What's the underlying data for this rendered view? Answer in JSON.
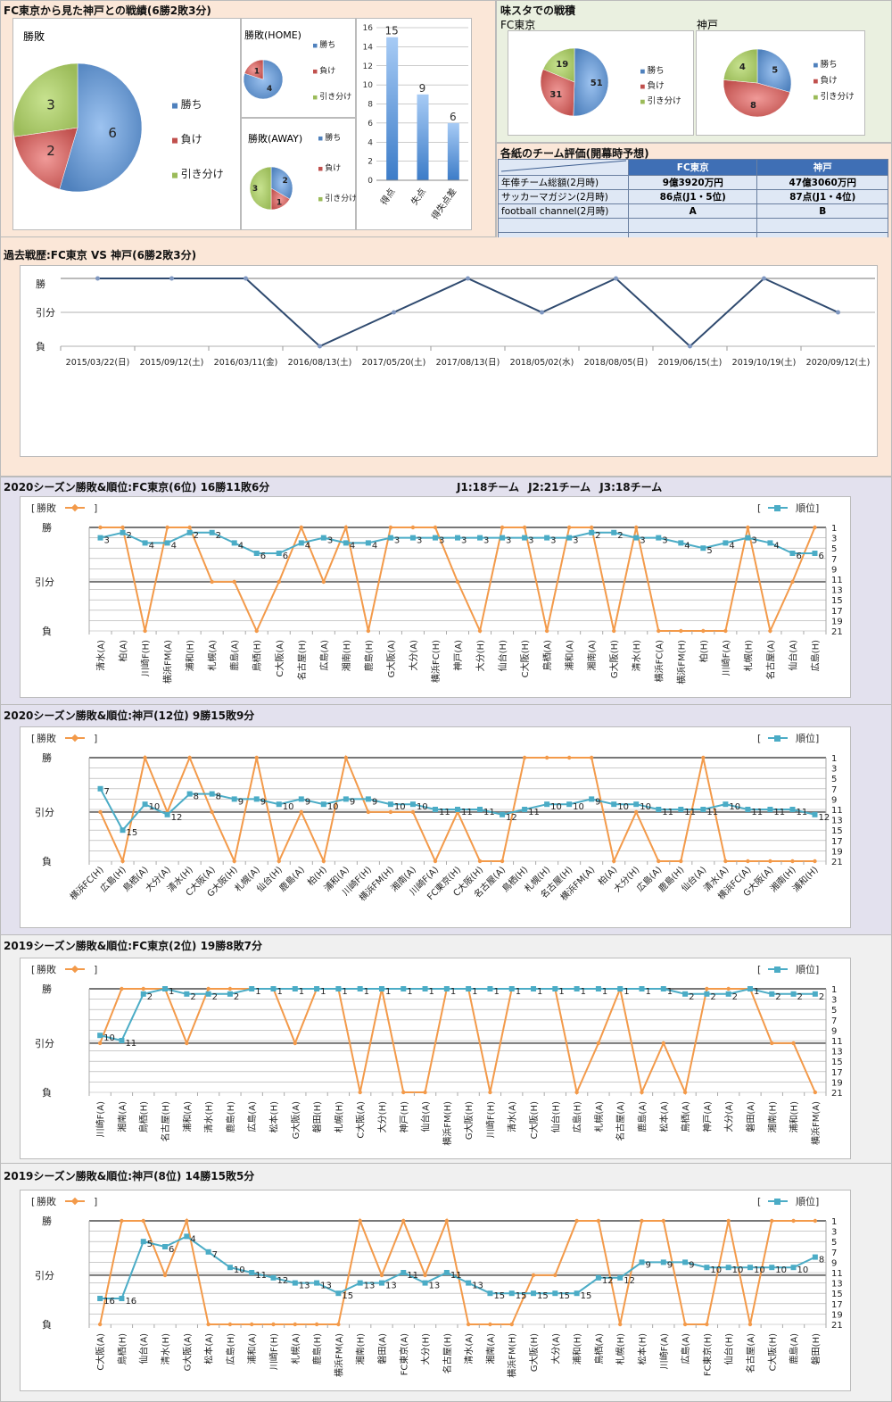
{
  "section_top": {
    "title": "FC東京から見た神戸との戦績(6勝2敗3分)",
    "legend": [
      "勝ち",
      "負け",
      "引き分け"
    ],
    "colors": {
      "win": "#4f81bd",
      "loss": "#c0504d",
      "draw": "#9bbb59",
      "win_light": "#9dc3f0",
      "loss_light": "#f09a98",
      "draw_light": "#c7e28f"
    }
  },
  "stadium": {
    "title": "味スタでの戦積",
    "fc_label": "FC東京",
    "kobe_label": "神戸"
  },
  "eval_table": {
    "title": "各紙のチーム評価(開幕時予想)",
    "headers": [
      "",
      "FC東京",
      "神戸"
    ],
    "rows": [
      [
        "年俸チーム総額(2月時)",
        "9億3920万円",
        "47億3060万円"
      ],
      [
        "サッカーマガジン(2月時)",
        "86点(J1・5位)",
        "87点(J1・4位)"
      ],
      [
        "football channel(2月時)",
        "A",
        "B"
      ],
      [
        "",
        "",
        ""
      ],
      [
        "",
        "",
        ""
      ]
    ]
  },
  "history": {
    "title": "過去戦歴:FC東京 VS 神戸(6勝2敗3分)"
  },
  "season_2020_tokyo": {
    "title": "2020シーズン勝敗&順位:FC東京(6位) 16勝11敗6分",
    "note": "J1:18チーム J2:21チーム J3:18チーム"
  },
  "season_2020_kobe": {
    "title": "2020シーズン勝敗&順位:神戸(12位) 9勝15敗9分"
  },
  "season_2019_tokyo": {
    "title": "2019シーズン勝敗&順位:FC東京(2位) 19勝8敗7分"
  },
  "season_2019_kobe": {
    "title": "2019シーズン勝敗&順位:神戸(8位) 14勝15敗5分"
  },
  "chart_data": [
    {
      "id": "pie_overall",
      "type": "pie",
      "title": "勝敗",
      "labels": [
        "勝ち",
        "負け",
        "引き分け"
      ],
      "values": [
        6,
        2,
        3
      ]
    },
    {
      "id": "pie_home",
      "type": "pie",
      "title": "勝敗(HOME)",
      "labels": [
        "勝ち",
        "負け",
        "引き分け"
      ],
      "values": [
        4,
        1,
        0
      ]
    },
    {
      "id": "pie_away",
      "type": "pie",
      "title": "勝敗(AWAY)",
      "labels": [
        "勝ち",
        "負け",
        "引き分け"
      ],
      "values": [
        2,
        1,
        3
      ]
    },
    {
      "id": "bar_goals",
      "type": "bar",
      "title": "",
      "categories": [
        "得点",
        "失点",
        "得失点差"
      ],
      "values": [
        15,
        9,
        6
      ],
      "ylim": [
        0,
        16
      ],
      "yticks": [
        0,
        2,
        4,
        6,
        8,
        10,
        12,
        14,
        16
      ]
    },
    {
      "id": "pie_ajista_tokyo",
      "type": "pie",
      "title": "FC東京",
      "labels": [
        "勝ち",
        "負け",
        "引き分け"
      ],
      "values": [
        51,
        31,
        19
      ]
    },
    {
      "id": "pie_ajista_kobe",
      "type": "pie",
      "title": "神戸",
      "labels": [
        "勝ち",
        "負け",
        "引き分け"
      ],
      "values": [
        5,
        8,
        4
      ]
    },
    {
      "id": "line_history",
      "type": "line",
      "title": "過去戦歴:FC東京 VS 神戸(6勝2敗3分)",
      "ylevels": [
        "負",
        "引分",
        "勝"
      ],
      "categories": [
        "2015/03/22(日)",
        "2015/09/12(土)",
        "2016/03/11(金)",
        "2016/08/13(土)",
        "2017/05/20(土)",
        "2017/08/13(日)",
        "2018/05/02(水)",
        "2018/08/05(日)",
        "2019/06/15(土)",
        "2019/10/19(土)",
        "2020/09/12(土)"
      ],
      "results": [
        "W",
        "W",
        "W",
        "L",
        "D",
        "W",
        "D",
        "W",
        "L",
        "W",
        "D"
      ]
    },
    {
      "id": "season_2020_tokyo",
      "type": "line",
      "legend": [
        "勝敗",
        "順位"
      ],
      "ylevels": [
        "負",
        "引分",
        "勝"
      ],
      "rank_ticks": [
        1,
        3,
        5,
        7,
        9,
        11,
        13,
        15,
        17,
        19,
        21
      ],
      "categories": [
        "清水(A)",
        "柏(A)",
        "川崎F(H)",
        "横浜FM(A)",
        "浦和(H)",
        "札幌(A)",
        "鹿島(A)",
        "鳥栖(H)",
        "C大阪(A)",
        "名古屋(H)",
        "広島(A)",
        "湘南(H)",
        "鹿島(H)",
        "G大阪(A)",
        "大分(A)",
        "横浜FC(H)",
        "神戸(A)",
        "大分(H)",
        "仙台(H)",
        "C大阪(H)",
        "鳥栖(A)",
        "浦和(A)",
        "湘南(A)",
        "G大阪(H)",
        "清水(H)",
        "横浜FC(A)",
        "横浜FM(H)",
        "柏(H)",
        "川崎F(A)",
        "札幌(H)",
        "名古屋(A)",
        "仙台(A)",
        "広島(H)"
      ],
      "results": [
        "W",
        "W",
        "L",
        "W",
        "W",
        "D",
        "D",
        "L",
        "D",
        "W",
        "D",
        "W",
        "L",
        "W",
        "W",
        "W",
        "D",
        "L",
        "W",
        "W",
        "L",
        "W",
        "W",
        "L",
        "W",
        "L",
        "L",
        "L",
        "L",
        "W",
        "L",
        "D",
        "W"
      ],
      "ranks": [
        3,
        2,
        4,
        4,
        2,
        2,
        4,
        6,
        6,
        4,
        3,
        4,
        4,
        3,
        3,
        3,
        3,
        3,
        3,
        3,
        3,
        3,
        2,
        2,
        3,
        3,
        4,
        5,
        4,
        3,
        4,
        6,
        6
      ]
    },
    {
      "id": "season_2020_kobe",
      "type": "line",
      "legend": [
        "勝敗",
        "順位"
      ],
      "ylevels": [
        "負",
        "引分",
        "勝"
      ],
      "rank_ticks": [
        1,
        3,
        5,
        7,
        9,
        11,
        13,
        15,
        17,
        19,
        21
      ],
      "categories": [
        "横浜FC(H)",
        "広島(H)",
        "鳥栖(A)",
        "大分(A)",
        "清水(H)",
        "C大阪(A)",
        "G大阪(H)",
        "札幌(A)",
        "仙台(H)",
        "鹿島(A)",
        "柏(H)",
        "浦和(A)",
        "川崎F(H)",
        "横浜FM(H)",
        "湘南(A)",
        "川崎F(A)",
        "FC東京(H)",
        "C大阪(H)",
        "名古屋(A)",
        "鳥栖(H)",
        "札幌(H)",
        "名古屋(H)",
        "横浜FM(A)",
        "柏(A)",
        "大分(H)",
        "広島(A)",
        "鹿島(H)",
        "仙台(A)",
        "清水(A)",
        "横浜FC(A)",
        "G大阪(A)",
        "湘南(H)",
        "浦和(H)"
      ],
      "results": [
        "D",
        "L",
        "W",
        "D",
        "W",
        "D",
        "L",
        "W",
        "L",
        "D",
        "L",
        "W",
        "D",
        "D",
        "D",
        "L",
        "D",
        "L",
        "L",
        "W",
        "W",
        "W",
        "W",
        "L",
        "D",
        "L",
        "L",
        "W",
        "L",
        "L",
        "L",
        "L",
        "L"
      ],
      "ranks": [
        7,
        15,
        10,
        12,
        8,
        8,
        9,
        9,
        10,
        9,
        10,
        9,
        9,
        10,
        10,
        11,
        11,
        11,
        12,
        11,
        10,
        10,
        9,
        10,
        10,
        11,
        11,
        11,
        10,
        11,
        11,
        11,
        12
      ]
    },
    {
      "id": "season_2019_tokyo",
      "type": "line",
      "legend": [
        "勝敗",
        "順位"
      ],
      "ylevels": [
        "負",
        "引分",
        "勝"
      ],
      "rank_ticks": [
        1,
        3,
        5,
        7,
        9,
        11,
        13,
        15,
        17,
        19,
        21
      ],
      "categories": [
        "川崎F(A)",
        "湘南(A)",
        "鳥栖(H)",
        "名古屋(H)",
        "浦和(A)",
        "清水(H)",
        "鹿島(H)",
        "広島(A)",
        "松本(H)",
        "G大阪(A)",
        "磐田(H)",
        "札幌(H)",
        "C大阪(A)",
        "大分(H)",
        "神戸(H)",
        "仙台(A)",
        "横浜FM(H)",
        "G大阪(H)",
        "川崎F(H)",
        "清水(A)",
        "C大阪(H)",
        "仙台(H)",
        "広島(H)",
        "札幌(A)",
        "名古屋(A)",
        "鹿島(A)",
        "松本(A)",
        "鳥栖(A)",
        "神戸(A)",
        "大分(A)",
        "磐田(A)",
        "湘南(H)",
        "浦和(H)",
        "横浜FM(A)"
      ],
      "results": [
        "D",
        "W",
        "W",
        "W",
        "D",
        "W",
        "W",
        "W",
        "W",
        "D",
        "W",
        "W",
        "L",
        "W",
        "L",
        "L",
        "W",
        "W",
        "L",
        "W",
        "W",
        "W",
        "L",
        "D",
        "W",
        "L",
        "D",
        "L",
        "W",
        "W",
        "W",
        "D",
        "D",
        "L"
      ],
      "ranks": [
        10,
        11,
        2,
        1,
        2,
        2,
        2,
        1,
        1,
        1,
        1,
        1,
        1,
        1,
        1,
        1,
        1,
        1,
        1,
        1,
        1,
        1,
        1,
        1,
        1,
        1,
        1,
        2,
        2,
        2,
        1,
        2,
        2,
        2
      ]
    },
    {
      "id": "season_2019_kobe",
      "type": "line",
      "legend": [
        "勝敗",
        "順位"
      ],
      "ylevels": [
        "負",
        "引分",
        "勝"
      ],
      "rank_ticks": [
        1,
        3,
        5,
        7,
        9,
        11,
        13,
        15,
        17,
        19,
        21
      ],
      "categories": [
        "C大阪(A)",
        "鳥栖(H)",
        "仙台(A)",
        "清水(H)",
        "G大阪(A)",
        "松本(A)",
        "広島(H)",
        "浦和(A)",
        "川崎F(H)",
        "札幌(A)",
        "鹿島(H)",
        "横浜FM(A)",
        "湘南(H)",
        "磐田(A)",
        "FC東京(A)",
        "大分(H)",
        "名古屋(H)",
        "清水(A)",
        "湘南(A)",
        "横浜FM(H)",
        "G大阪(H)",
        "大分(A)",
        "浦和(H)",
        "鳥栖(A)",
        "札幌(H)",
        "松本(H)",
        "川崎F(A)",
        "広島(A)",
        "FC東京(H)",
        "仙台(H)",
        "名古屋(A)",
        "C大阪(H)",
        "鹿島(A)",
        "磐田(H)"
      ],
      "results": [
        "L",
        "W",
        "W",
        "D",
        "W",
        "L",
        "L",
        "L",
        "L",
        "L",
        "L",
        "L",
        "W",
        "D",
        "W",
        "D",
        "W",
        "L",
        "L",
        "L",
        "D",
        "D",
        "W",
        "W",
        "L",
        "W",
        "W",
        "L",
        "L",
        "W",
        "L",
        "W",
        "W",
        "W"
      ],
      "ranks": [
        16,
        16,
        5,
        6,
        4,
        7,
        10,
        11,
        12,
        13,
        13,
        15,
        13,
        13,
        11,
        13,
        11,
        13,
        15,
        15,
        15,
        15,
        15,
        12,
        12,
        9,
        9,
        9,
        10,
        10,
        10,
        10,
        10,
        8
      ]
    }
  ]
}
